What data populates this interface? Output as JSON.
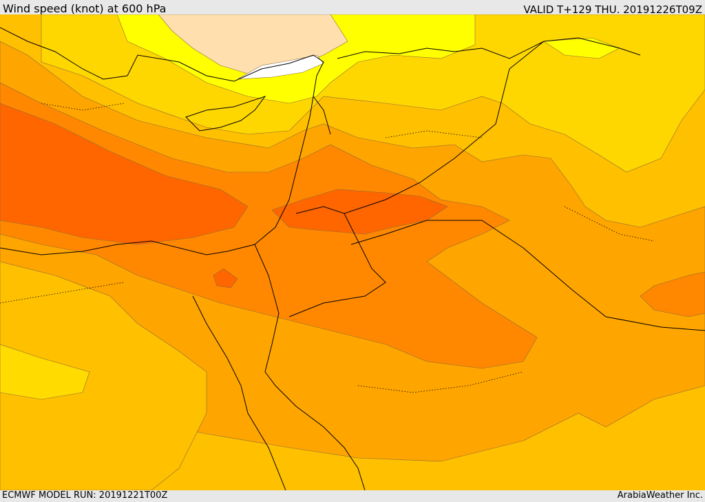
{
  "header": {
    "title": "Wind speed (knot) at 600 hPa",
    "valid": "VALID T+129 THU. 20191226T09Z"
  },
  "footer": {
    "model_run": "ECMWF MODEL RUN: 20191221T00Z",
    "brand": "ArabiaWeather Inc."
  },
  "legend_colors": {
    "very_light": "#ffdfae",
    "light_yellow": "#ffff00",
    "yellow_gold": "#ffdb00",
    "gold": "#ffc000",
    "orange_light": "#ffa500",
    "orange": "#ff8800",
    "orange_dark": "#ff6600"
  }
}
